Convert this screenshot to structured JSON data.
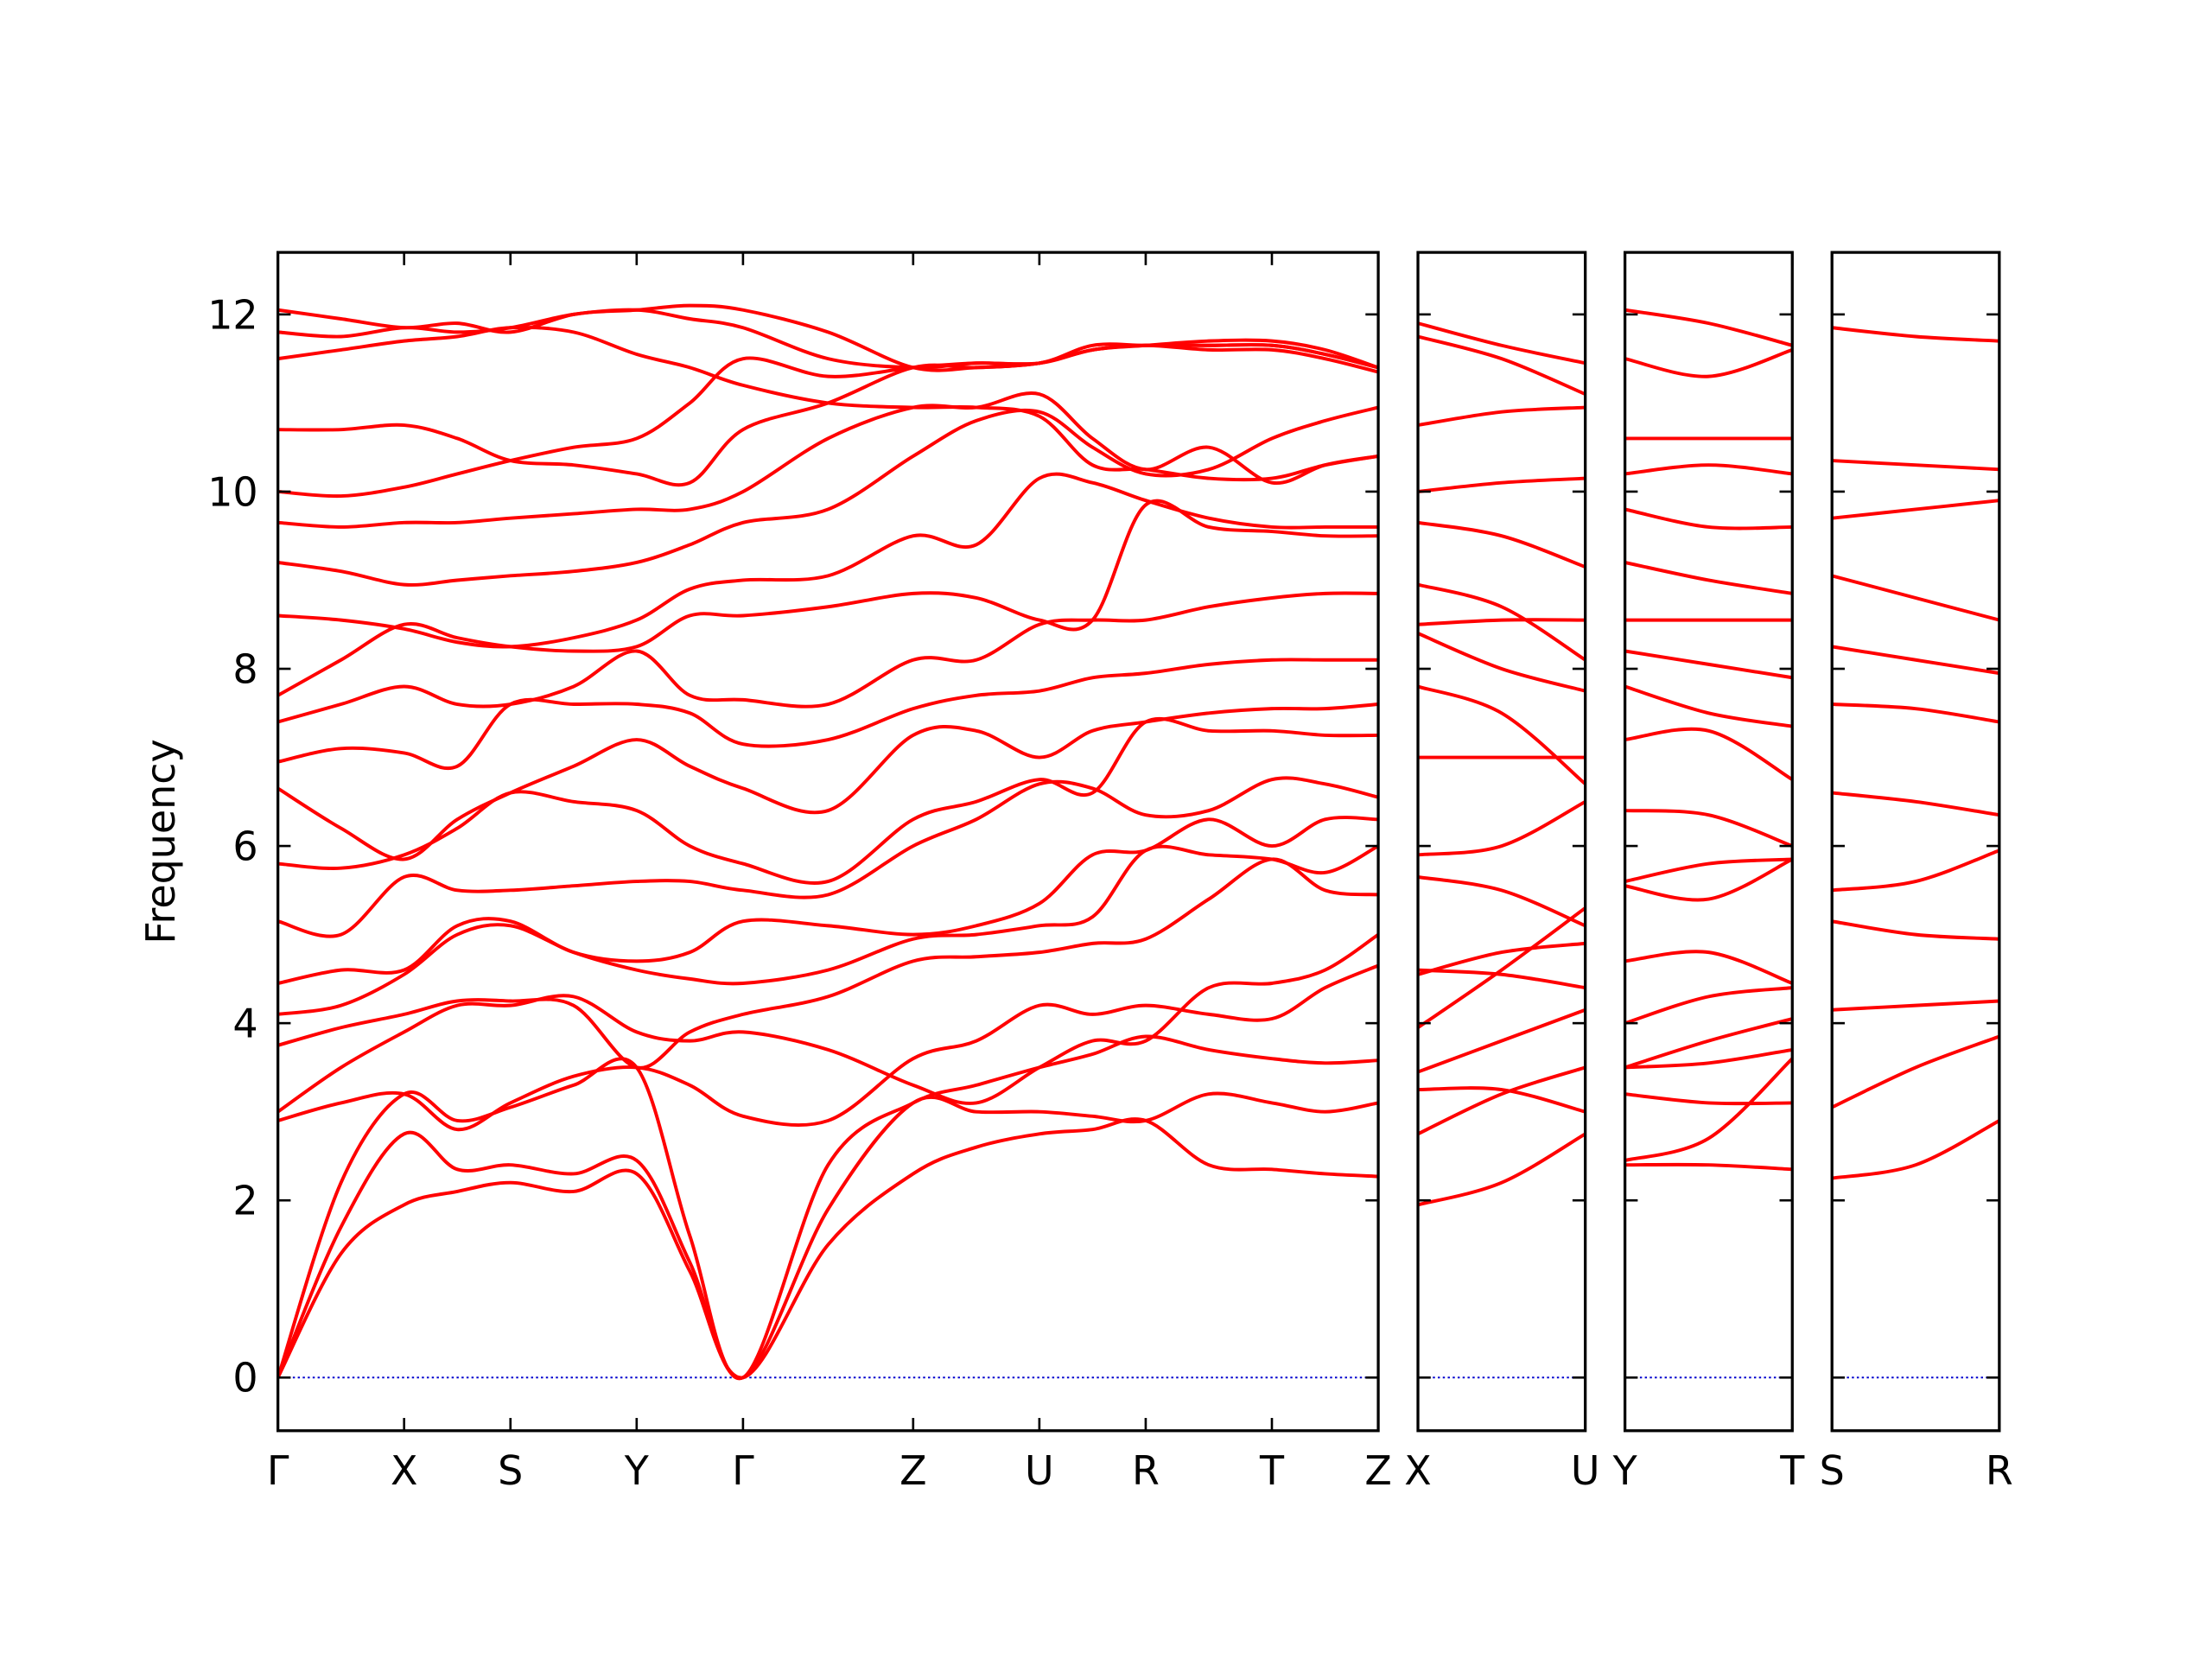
{
  "chart_data": [
    {
      "type": "line",
      "ylabel": "Frequency",
      "color": "#ff0000",
      "zero_line_color": "#0000cd",
      "ytick_labels": true,
      "xlim": [
        0,
        7.76
      ],
      "ylim": [
        -0.6,
        12.7
      ],
      "yticks": [
        0,
        2,
        4,
        6,
        8,
        10,
        12
      ],
      "xticks": [
        {
          "value": 0,
          "label": "Γ"
        },
        {
          "value": 0.89,
          "label": "X"
        },
        {
          "value": 1.64,
          "label": "S"
        },
        {
          "value": 2.53,
          "label": "Y"
        },
        {
          "value": 3.28,
          "label": "Γ"
        },
        {
          "value": 4.48,
          "label": "Z"
        },
        {
          "value": 5.37,
          "label": "U"
        },
        {
          "value": 6.12,
          "label": "R"
        },
        {
          "value": 7.01,
          "label": "T"
        },
        {
          "value": 7.76,
          "label": "Z"
        }
      ],
      "x": [
        0,
        0.445,
        0.89,
        1.265,
        1.64,
        2.085,
        2.53,
        2.905,
        3.28,
        3.88,
        4.48,
        4.925,
        5.37,
        5.745,
        6.12,
        6.565,
        7.01,
        7.385,
        7.76
      ],
      "series": [
        {
          "values": [
            0,
            1.4,
            1.95,
            2.1,
            2.2,
            2.1,
            2.3,
            1.2,
            0,
            1.5,
            2.3,
            2.6,
            2.75,
            2.8,
            2.9,
            2.4,
            2.35,
            2.3,
            2.27
          ]
        },
        {
          "values": [
            0,
            1.7,
            2.75,
            2.35,
            2.4,
            2.3,
            2.45,
            1.3,
            0,
            1.9,
            3.1,
            3.0,
            3.0,
            2.95,
            2.9,
            3.2,
            3.1,
            3.0,
            3.1
          ]
        },
        {
          "values": [
            0,
            2.2,
            3.2,
            2.9,
            3.05,
            3.3,
            3.5,
            1.6,
            0,
            2.4,
            3.1,
            3.3,
            3.5,
            3.65,
            3.85,
            3.7,
            3.6,
            3.55,
            3.58
          ]
        },
        {
          "values": [
            2.9,
            3.1,
            3.2,
            2.8,
            3.1,
            3.4,
            3.5,
            3.3,
            2.95,
            2.9,
            3.6,
            3.8,
            4.2,
            4.1,
            4.2,
            4.1,
            4.05,
            4.4,
            4.65
          ]
        },
        {
          "values": [
            3.0,
            3.5,
            3.9,
            4.2,
            4.2,
            4.3,
            3.9,
            3.8,
            3.9,
            3.7,
            3.3,
            3.1,
            3.5,
            3.8,
            3.8,
            4.4,
            4.45,
            4.6,
            5.0
          ]
        },
        {
          "values": [
            3.75,
            3.95,
            4.1,
            4.25,
            4.25,
            4.2,
            3.5,
            3.9,
            4.1,
            4.3,
            4.7,
            4.75,
            4.8,
            4.9,
            4.95,
            5.4,
            5.85,
            5.5,
            5.45
          ]
        },
        {
          "values": [
            4.1,
            4.2,
            4.55,
            5.0,
            5.1,
            4.8,
            4.6,
            4.5,
            4.45,
            4.6,
            4.95,
            5.0,
            5.1,
            5.2,
            5.95,
            5.9,
            5.85,
            5.7,
            6.0
          ]
        },
        {
          "values": [
            4.45,
            4.6,
            4.6,
            5.1,
            5.15,
            4.8,
            4.7,
            4.8,
            5.15,
            5.1,
            5.0,
            5.1,
            5.35,
            5.9,
            5.95,
            6.3,
            6.0,
            6.3,
            6.3
          ]
        },
        {
          "values": [
            5.15,
            5.0,
            5.65,
            5.5,
            5.5,
            5.55,
            5.6,
            5.6,
            5.5,
            5.45,
            6.0,
            6.3,
            6.7,
            6.65,
            6.35,
            6.4,
            6.75,
            6.7,
            6.55
          ]
        },
        {
          "values": [
            5.8,
            5.75,
            5.9,
            6.2,
            6.6,
            6.5,
            6.4,
            6.0,
            5.8,
            5.6,
            6.3,
            6.5,
            6.75,
            6.6,
            7.4,
            7.3,
            7.3,
            7.25,
            7.25
          ]
        },
        {
          "values": [
            6.65,
            6.2,
            5.85,
            6.3,
            6.6,
            6.9,
            7.2,
            6.9,
            6.65,
            6.4,
            7.25,
            7.3,
            7.0,
            7.3,
            7.4,
            7.5,
            7.55,
            7.55,
            7.6
          ]
        },
        {
          "values": [
            6.95,
            7.1,
            7.05,
            6.9,
            7.6,
            7.6,
            7.6,
            7.5,
            7.15,
            7.2,
            7.55,
            7.7,
            7.75,
            7.9,
            7.95,
            8.05,
            8.1,
            8.1,
            8.1
          ]
        },
        {
          "values": [
            7.4,
            7.6,
            7.8,
            7.6,
            7.6,
            7.8,
            8.2,
            7.7,
            7.65,
            7.6,
            8.1,
            8.1,
            8.5,
            8.55,
            8.55,
            8.7,
            8.8,
            8.85,
            8.85
          ]
        },
        {
          "values": [
            7.7,
            8.1,
            8.5,
            8.35,
            8.25,
            8.2,
            8.25,
            8.6,
            8.6,
            8.7,
            8.85,
            8.8,
            8.55,
            8.55,
            9.85,
            9.6,
            9.55,
            9.5,
            9.5
          ]
        },
        {
          "values": [
            8.6,
            8.55,
            8.45,
            8.3,
            8.25,
            8.35,
            8.55,
            8.9,
            9.0,
            9.05,
            9.5,
            9.4,
            10.15,
            10.1,
            9.9,
            9.7,
            9.6,
            9.6,
            9.6
          ]
        },
        {
          "values": [
            9.2,
            9.1,
            8.95,
            9.0,
            9.05,
            9.1,
            9.2,
            9.4,
            9.65,
            9.8,
            10.4,
            10.8,
            10.9,
            10.5,
            10.2,
            10.25,
            10.6,
            10.8,
            10.95
          ]
        },
        {
          "values": [
            9.65,
            9.6,
            9.65,
            9.65,
            9.7,
            9.75,
            9.8,
            9.8,
            10.0,
            10.6,
            10.95,
            10.95,
            11.1,
            10.6,
            10.25,
            10.5,
            10.1,
            10.3,
            10.4
          ]
        },
        {
          "values": [
            10.0,
            9.95,
            10.05,
            10.2,
            10.35,
            10.5,
            10.6,
            11.0,
            11.5,
            11.3,
            11.4,
            11.45,
            11.45,
            11.6,
            11.65,
            11.6,
            11.6,
            11.5,
            11.35
          ]
        },
        {
          "values": [
            10.7,
            10.7,
            10.75,
            10.6,
            10.35,
            10.3,
            10.2,
            10.1,
            10.7,
            11.0,
            11.4,
            11.4,
            11.45,
            11.6,
            11.65,
            11.65,
            11.65,
            11.55,
            11.4
          ]
        },
        {
          "values": [
            11.5,
            11.6,
            11.7,
            11.75,
            11.85,
            11.8,
            11.55,
            11.4,
            11.2,
            11.0,
            10.95,
            10.95,
            10.85,
            10.3,
            10.25,
            10.15,
            10.15,
            10.3,
            10.4
          ]
        },
        {
          "values": [
            11.8,
            11.75,
            11.85,
            11.8,
            11.85,
            12.0,
            12.05,
            11.95,
            11.85,
            11.5,
            11.4,
            11.45,
            11.45,
            11.65,
            11.65,
            11.65,
            11.65,
            11.55,
            11.4
          ]
        },
        {
          "values": [
            12.05,
            11.95,
            11.85,
            11.9,
            11.8,
            12.0,
            12.05,
            12.1,
            12.05,
            11.8,
            11.4,
            11.4,
            11.45,
            11.6,
            11.65,
            11.7,
            11.7,
            11.6,
            11.4
          ]
        }
      ]
    },
    {
      "type": "line",
      "color": "#ff0000",
      "zero_line_color": "#0000cd",
      "ytick_labels": false,
      "xlim": [
        0,
        1.18
      ],
      "ylim": [
        -0.6,
        12.7
      ],
      "yticks": [
        0,
        2,
        4,
        6,
        8,
        10,
        12
      ],
      "xticks": [
        {
          "value": 0,
          "label": "X"
        },
        {
          "value": 1.18,
          "label": "U"
        }
      ],
      "x": [
        0,
        0.59,
        1.18
      ],
      "series": [
        {
          "values": [
            1.95,
            2.2,
            2.75
          ]
        },
        {
          "values": [
            2.75,
            3.2,
            3.5
          ]
        },
        {
          "values": [
            3.25,
            3.25,
            3.0
          ]
        },
        {
          "values": [
            3.45,
            3.8,
            4.15
          ]
        },
        {
          "values": [
            3.95,
            4.6,
            5.3
          ]
        },
        {
          "values": [
            4.55,
            4.8,
            4.9
          ]
        },
        {
          "values": [
            4.6,
            4.55,
            4.4
          ]
        },
        {
          "values": [
            5.65,
            5.5,
            5.1
          ]
        },
        {
          "values": [
            5.9,
            6.0,
            6.5
          ]
        },
        {
          "values": [
            7.0,
            7.0,
            7.0
          ]
        },
        {
          "values": [
            7.8,
            7.5,
            6.7
          ]
        },
        {
          "values": [
            8.4,
            8.0,
            7.75
          ]
        },
        {
          "values": [
            8.5,
            8.55,
            8.55
          ]
        },
        {
          "values": [
            8.95,
            8.7,
            8.1
          ]
        },
        {
          "values": [
            9.65,
            9.5,
            9.15
          ]
        },
        {
          "values": [
            10.0,
            10.1,
            10.15
          ]
        },
        {
          "values": [
            10.75,
            10.9,
            10.95
          ]
        },
        {
          "values": [
            11.75,
            11.5,
            11.1
          ]
        },
        {
          "values": [
            11.9,
            11.65,
            11.45
          ]
        }
      ]
    },
    {
      "type": "line",
      "color": "#ff0000",
      "zero_line_color": "#0000cd",
      "ytick_labels": false,
      "xlim": [
        0,
        1.18
      ],
      "ylim": [
        -0.6,
        12.7
      ],
      "yticks": [
        0,
        2,
        4,
        6,
        8,
        10,
        12
      ],
      "xticks": [
        {
          "value": 0,
          "label": "Y"
        },
        {
          "value": 1.18,
          "label": "T"
        }
      ],
      "x": [
        0,
        0.59,
        1.18
      ],
      "series": [
        {
          "values": [
            2.4,
            2.4,
            2.35
          ]
        },
        {
          "values": [
            2.45,
            2.7,
            3.6
          ]
        },
        {
          "values": [
            3.2,
            3.1,
            3.1
          ]
        },
        {
          "values": [
            3.5,
            3.55,
            3.7
          ]
        },
        {
          "values": [
            3.5,
            3.8,
            4.05
          ]
        },
        {
          "values": [
            4.0,
            4.3,
            4.4
          ]
        },
        {
          "values": [
            4.7,
            4.8,
            4.45
          ]
        },
        {
          "values": [
            5.55,
            5.4,
            5.85
          ]
        },
        {
          "values": [
            5.6,
            5.8,
            5.85
          ]
        },
        {
          "values": [
            6.4,
            6.35,
            6.0
          ]
        },
        {
          "values": [
            7.2,
            7.3,
            6.75
          ]
        },
        {
          "values": [
            7.8,
            7.5,
            7.35
          ]
        },
        {
          "values": [
            8.2,
            8.05,
            7.9
          ]
        },
        {
          "values": [
            8.55,
            8.55,
            8.55
          ]
        },
        {
          "values": [
            9.2,
            9.0,
            8.85
          ]
        },
        {
          "values": [
            9.8,
            9.6,
            9.6
          ]
        },
        {
          "values": [
            10.2,
            10.3,
            10.2
          ]
        },
        {
          "values": [
            10.6,
            10.6,
            10.6
          ]
        },
        {
          "values": [
            11.5,
            11.3,
            11.6
          ]
        },
        {
          "values": [
            12.05,
            11.9,
            11.65
          ]
        }
      ]
    },
    {
      "type": "line",
      "color": "#ff0000",
      "zero_line_color": "#0000cd",
      "ytick_labels": false,
      "xlim": [
        0,
        1.18
      ],
      "ylim": [
        -0.6,
        12.7
      ],
      "yticks": [
        0,
        2,
        4,
        6,
        8,
        10,
        12
      ],
      "xticks": [
        {
          "value": 0,
          "label": "S"
        },
        {
          "value": 1.18,
          "label": "R"
        }
      ],
      "x": [
        0,
        0.59,
        1.18
      ],
      "series": [
        {
          "values": [
            2.25,
            2.4,
            2.9
          ]
        },
        {
          "values": [
            3.05,
            3.5,
            3.85
          ]
        },
        {
          "values": [
            4.15,
            4.2,
            4.25
          ]
        },
        {
          "values": [
            5.15,
            5.0,
            4.95
          ]
        },
        {
          "values": [
            5.5,
            5.6,
            5.95
          ]
        },
        {
          "values": [
            6.6,
            6.5,
            6.35
          ]
        },
        {
          "values": [
            7.6,
            7.55,
            7.4
          ]
        },
        {
          "values": [
            8.25,
            8.1,
            7.95
          ]
        },
        {
          "values": [
            9.05,
            8.8,
            8.55
          ]
        },
        {
          "values": [
            9.7,
            9.8,
            9.9
          ]
        },
        {
          "values": [
            10.35,
            10.3,
            10.25
          ]
        },
        {
          "values": [
            11.85,
            11.75,
            11.7
          ]
        }
      ]
    }
  ]
}
